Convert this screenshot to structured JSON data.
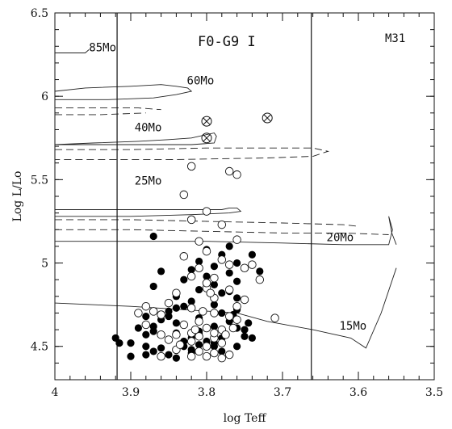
{
  "chart_data": {
    "type": "scatter",
    "title": "F0-G9 I",
    "panel_label": "M31",
    "xlabel": "log Teff",
    "ylabel": "Log L/Lo",
    "xlim": [
      4.0,
      3.5
    ],
    "ylim": [
      4.3,
      6.5
    ],
    "x_inverted": true,
    "xticks": [
      4.0,
      3.9,
      3.8,
      3.7,
      3.6,
      3.5
    ],
    "xtick_labels": [
      "4",
      "3.9",
      "3.8",
      "3.7",
      "3.6",
      "3.5"
    ],
    "yticks": [
      4.5,
      5.0,
      5.5,
      6.0,
      6.5
    ],
    "ytick_labels": [
      "4.5",
      "5",
      "5.5",
      "6",
      "6.5"
    ],
    "grid": false,
    "vertical_lines": [
      3.918,
      3.662
    ],
    "track_labels": [
      {
        "text": "85Mo",
        "x": 3.955,
        "y": 6.27
      },
      {
        "text": "60Mo",
        "x": 3.826,
        "y": 6.07
      },
      {
        "text": "40Mo",
        "x": 3.895,
        "y": 5.79
      },
      {
        "text": "25Mo",
        "x": 3.895,
        "y": 5.47
      },
      {
        "text": "20Mo",
        "x": 3.642,
        "y": 5.13
      },
      {
        "text": "15Mo",
        "x": 3.625,
        "y": 4.6
      }
    ],
    "series": [
      {
        "style": "filled-circle",
        "points": [
          [
            3.81,
            4.59
          ],
          [
            3.89,
            4.61
          ],
          [
            3.87,
            4.62
          ],
          [
            3.76,
            4.61
          ],
          [
            3.84,
            4.58
          ],
          [
            3.81,
            4.56
          ],
          [
            3.86,
            4.57
          ],
          [
            3.82,
            4.55
          ],
          [
            3.75,
            4.56
          ],
          [
            3.83,
            4.53
          ],
          [
            3.78,
            4.55
          ],
          [
            3.8,
            4.53
          ],
          [
            3.9,
            4.52
          ],
          [
            3.81,
            4.51
          ],
          [
            3.88,
            4.5
          ],
          [
            3.86,
            4.49
          ],
          [
            3.79,
            4.5
          ],
          [
            3.76,
            4.5
          ],
          [
            3.82,
            4.48
          ],
          [
            3.87,
            4.47
          ],
          [
            3.85,
            4.45
          ],
          [
            3.8,
            4.44
          ],
          [
            3.77,
            4.45
          ],
          [
            3.84,
            4.43
          ],
          [
            3.9,
            4.44
          ],
          [
            3.78,
            4.47
          ],
          [
            3.82,
            4.46
          ],
          [
            3.79,
            4.62
          ],
          [
            3.84,
            4.64
          ],
          [
            3.77,
            4.65
          ],
          [
            3.86,
            4.66
          ],
          [
            3.81,
            4.67
          ],
          [
            3.88,
            4.68
          ],
          [
            3.78,
            4.7
          ],
          [
            3.85,
            4.71
          ],
          [
            3.76,
            4.72
          ],
          [
            3.83,
            4.74
          ],
          [
            3.79,
            4.75
          ],
          [
            3.82,
            4.77
          ],
          [
            3.76,
            4.79
          ],
          [
            3.84,
            4.8
          ],
          [
            3.78,
            4.82
          ],
          [
            3.81,
            4.84
          ],
          [
            3.87,
            4.86
          ],
          [
            3.79,
            4.87
          ],
          [
            3.76,
            4.89
          ],
          [
            3.83,
            4.9
          ],
          [
            3.8,
            4.92
          ],
          [
            3.77,
            4.94
          ],
          [
            3.82,
            4.96
          ],
          [
            3.79,
            4.98
          ],
          [
            3.76,
            5.0
          ],
          [
            3.81,
            5.01
          ],
          [
            3.74,
            5.05
          ],
          [
            3.78,
            5.05
          ],
          [
            3.8,
            5.08
          ],
          [
            3.77,
            5.1
          ],
          [
            3.73,
            4.95
          ],
          [
            3.86,
            4.95
          ],
          [
            3.88,
            4.45
          ],
          [
            3.92,
            4.55
          ],
          [
            3.915,
            4.52
          ],
          [
            3.75,
            4.6
          ],
          [
            3.745,
            4.64
          ],
          [
            3.765,
            4.69
          ],
          [
            3.87,
            5.16
          ],
          [
            3.88,
            4.57
          ],
          [
            3.87,
            4.59
          ],
          [
            3.81,
            4.58
          ],
          [
            3.79,
            4.52
          ],
          [
            3.83,
            4.5
          ],
          [
            3.74,
            4.55
          ],
          [
            3.77,
            4.83
          ],
          [
            3.85,
            4.68
          ],
          [
            3.84,
            4.73
          ]
        ]
      },
      {
        "style": "open-circle",
        "points": [
          [
            3.82,
            5.58
          ],
          [
            3.77,
            5.55
          ],
          [
            3.76,
            5.53
          ],
          [
            3.83,
            5.41
          ],
          [
            3.82,
            5.26
          ],
          [
            3.78,
            5.23
          ],
          [
            3.8,
            5.31
          ],
          [
            3.76,
            5.14
          ],
          [
            3.81,
            5.13
          ],
          [
            3.8,
            5.07
          ],
          [
            3.83,
            5.04
          ],
          [
            3.78,
            5.02
          ],
          [
            3.81,
            4.97
          ],
          [
            3.77,
            4.99
          ],
          [
            3.75,
            4.97
          ],
          [
            3.82,
            4.92
          ],
          [
            3.79,
            4.91
          ],
          [
            3.73,
            4.9
          ],
          [
            3.8,
            4.85
          ],
          [
            3.77,
            4.84
          ],
          [
            3.84,
            4.82
          ],
          [
            3.79,
            4.79
          ],
          [
            3.85,
            4.76
          ],
          [
            3.76,
            4.74
          ],
          [
            3.82,
            4.73
          ],
          [
            3.79,
            4.7
          ],
          [
            3.86,
            4.69
          ],
          [
            3.77,
            4.68
          ],
          [
            3.81,
            4.65
          ],
          [
            3.83,
            4.63
          ],
          [
            3.8,
            4.61
          ],
          [
            3.78,
            4.6
          ],
          [
            3.84,
            4.57
          ],
          [
            3.81,
            4.56
          ],
          [
            3.79,
            4.55
          ],
          [
            3.82,
            4.53
          ],
          [
            3.78,
            4.52
          ],
          [
            3.8,
            4.5
          ],
          [
            3.84,
            4.48
          ],
          [
            3.81,
            4.47
          ],
          [
            3.79,
            4.46
          ],
          [
            3.82,
            4.44
          ],
          [
            3.77,
            4.45
          ],
          [
            3.88,
            4.74
          ],
          [
            3.87,
            4.71
          ],
          [
            3.89,
            4.7
          ],
          [
            3.71,
            4.67
          ],
          [
            3.8,
            4.88
          ],
          [
            3.88,
            4.63
          ],
          [
            3.85,
            4.54
          ],
          [
            3.75,
            4.78
          ],
          [
            3.76,
            4.66
          ],
          [
            3.86,
            4.57
          ],
          [
            3.78,
            4.43
          ],
          [
            3.82,
            4.58
          ],
          [
            3.79,
            4.58
          ],
          [
            3.835,
            4.51
          ],
          [
            3.86,
            4.44
          ],
          [
            3.775,
            4.57
          ],
          [
            3.805,
            4.71
          ],
          [
            3.74,
            4.99
          ],
          [
            3.765,
            4.61
          ],
          [
            3.8,
            4.44
          ],
          [
            3.815,
            4.6
          ],
          [
            3.795,
            4.82
          ]
        ]
      },
      {
        "style": "crossed-circle",
        "points": [
          [
            3.8,
            5.85
          ],
          [
            3.72,
            5.87
          ],
          [
            3.8,
            5.75
          ]
        ]
      }
    ],
    "tracks": [
      {
        "style": "solid",
        "points": [
          [
            4.0,
            6.26
          ],
          [
            3.96,
            6.26
          ],
          [
            3.955,
            6.28
          ]
        ]
      },
      {
        "style": "solid",
        "points": [
          [
            4.0,
            6.03
          ],
          [
            3.96,
            6.05
          ],
          [
            3.9,
            6.06
          ],
          [
            3.86,
            6.07
          ],
          [
            3.84,
            6.06
          ],
          [
            3.825,
            6.05
          ],
          [
            3.82,
            6.03
          ],
          [
            3.84,
            6.01
          ],
          [
            3.87,
            5.99
          ],
          [
            3.93,
            5.98
          ],
          [
            4.0,
            5.98
          ]
        ]
      },
      {
        "style": "dashed",
        "points": [
          [
            4.0,
            5.93
          ],
          [
            3.94,
            5.93
          ],
          [
            3.89,
            5.93
          ],
          [
            3.86,
            5.92
          ]
        ]
      },
      {
        "style": "dashed",
        "points": [
          [
            4.0,
            5.89
          ],
          [
            3.94,
            5.89
          ],
          [
            3.88,
            5.9
          ]
        ]
      },
      {
        "style": "solid",
        "points": [
          [
            4.0,
            5.71
          ],
          [
            3.95,
            5.72
          ],
          [
            3.89,
            5.73
          ],
          [
            3.85,
            5.74
          ],
          [
            3.82,
            5.75
          ],
          [
            3.8,
            5.77
          ],
          [
            3.79,
            5.78
          ],
          [
            3.787,
            5.76
          ],
          [
            3.79,
            5.72
          ],
          [
            3.82,
            5.71
          ],
          [
            3.87,
            5.71
          ],
          [
            3.94,
            5.71
          ],
          [
            4.0,
            5.71
          ]
        ]
      },
      {
        "style": "dashed",
        "points": [
          [
            4.0,
            5.68
          ],
          [
            3.9,
            5.68
          ],
          [
            3.8,
            5.69
          ],
          [
            3.72,
            5.69
          ],
          [
            3.66,
            5.69
          ],
          [
            3.64,
            5.67
          ],
          [
            3.66,
            5.64
          ],
          [
            3.72,
            5.63
          ],
          [
            3.85,
            5.62
          ],
          [
            4.0,
            5.62
          ]
        ]
      },
      {
        "style": "solid",
        "points": [
          [
            4.0,
            5.32
          ],
          [
            3.9,
            5.32
          ],
          [
            3.82,
            5.32
          ],
          [
            3.78,
            5.32
          ],
          [
            3.77,
            5.33
          ],
          [
            3.76,
            5.33
          ],
          [
            3.755,
            5.31
          ],
          [
            3.77,
            5.3
          ],
          [
            3.82,
            5.29
          ],
          [
            3.9,
            5.28
          ],
          [
            4.0,
            5.28
          ]
        ]
      },
      {
        "style": "dashed",
        "points": [
          [
            4.0,
            5.26
          ],
          [
            3.9,
            5.26
          ],
          [
            3.8,
            5.25
          ],
          [
            3.7,
            5.24
          ],
          [
            3.62,
            5.23
          ],
          [
            3.6,
            5.22
          ]
        ]
      },
      {
        "style": "dashed",
        "points": [
          [
            4.0,
            5.2
          ],
          [
            3.9,
            5.2
          ],
          [
            3.8,
            5.19
          ],
          [
            3.7,
            5.18
          ],
          [
            3.62,
            5.18
          ],
          [
            3.56,
            5.17
          ]
        ]
      },
      {
        "style": "solid",
        "points": [
          [
            4.0,
            5.13
          ],
          [
            3.9,
            5.13
          ],
          [
            3.8,
            5.13
          ],
          [
            3.7,
            5.12
          ],
          [
            3.62,
            5.11
          ],
          [
            3.56,
            5.11
          ],
          [
            3.555,
            5.2
          ],
          [
            3.56,
            5.28
          ],
          [
            3.556,
            5.18
          ],
          [
            3.55,
            5.11
          ]
        ]
      },
      {
        "style": "solid",
        "points": [
          [
            4.0,
            4.76
          ],
          [
            3.9,
            4.74
          ],
          [
            3.83,
            4.72
          ],
          [
            3.76,
            4.7
          ],
          [
            3.72,
            4.65
          ],
          [
            3.66,
            4.6
          ],
          [
            3.61,
            4.55
          ],
          [
            3.59,
            4.49
          ],
          [
            3.57,
            4.7
          ],
          [
            3.55,
            4.97
          ]
        ]
      }
    ]
  }
}
